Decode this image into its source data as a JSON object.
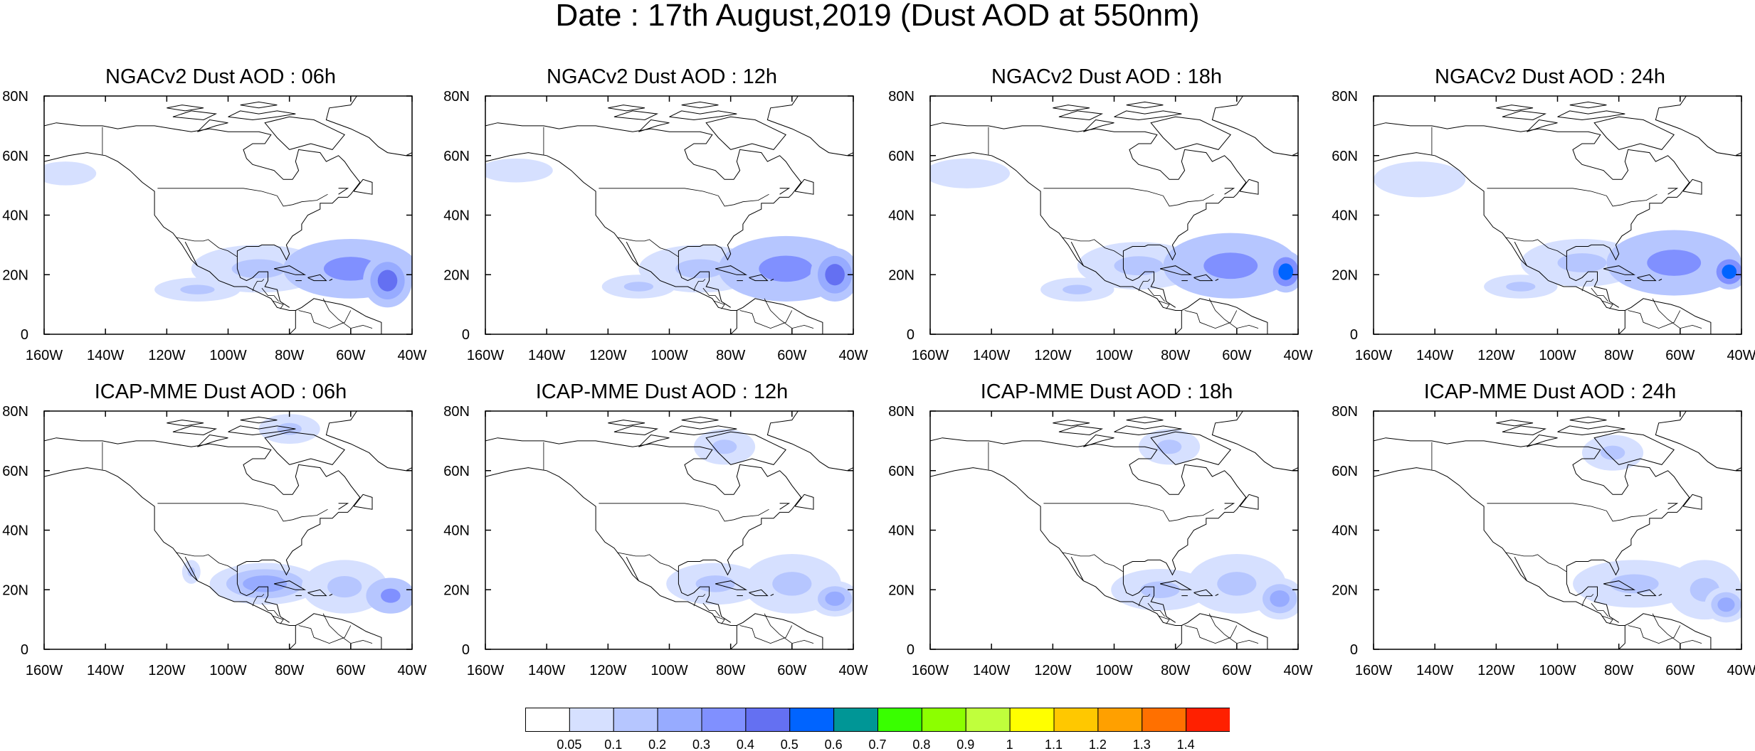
{
  "figure": {
    "title": "Date : 17th August,2019 (Dust AOD at 550nm)"
  },
  "map": {
    "lon_range": [
      -160,
      -40
    ],
    "lat_range": [
      0,
      80
    ],
    "x_tick_labels": [
      "160W",
      "140W",
      "120W",
      "100W",
      "80W",
      "60W",
      "40W"
    ],
    "y_tick_labels": [
      "80N",
      "60N",
      "40N",
      "20N",
      "0"
    ]
  },
  "panels": [
    {
      "title": "NGACv2 Dust AOD : 06h",
      "model": "NGACv2",
      "hour": "06h",
      "blobs": [
        {
          "lon": -153,
          "lat": 54,
          "rx": 10,
          "ry": 4,
          "v": 0.07
        },
        {
          "lon": -90,
          "lat": 22,
          "rx": 22,
          "ry": 8,
          "v": 0.15
        },
        {
          "lon": -60,
          "lat": 22,
          "rx": 22,
          "ry": 10,
          "v": 0.3
        },
        {
          "lon": -48,
          "lat": 18,
          "rx": 8,
          "ry": 9,
          "v": 0.45
        },
        {
          "lon": -110,
          "lat": 15,
          "rx": 14,
          "ry": 4,
          "v": 0.1
        }
      ]
    },
    {
      "title": "NGACv2 Dust AOD : 12h",
      "model": "NGACv2",
      "hour": "12h",
      "blobs": [
        {
          "lon": -150,
          "lat": 55,
          "rx": 12,
          "ry": 4,
          "v": 0.07
        },
        {
          "lon": -90,
          "lat": 22,
          "rx": 20,
          "ry": 8,
          "v": 0.15
        },
        {
          "lon": -62,
          "lat": 22,
          "rx": 22,
          "ry": 11,
          "v": 0.3
        },
        {
          "lon": -46,
          "lat": 20,
          "rx": 8,
          "ry": 9,
          "v": 0.45
        },
        {
          "lon": -110,
          "lat": 16,
          "rx": 12,
          "ry": 4,
          "v": 0.1
        }
      ]
    },
    {
      "title": "NGACv2 Dust AOD : 18h",
      "model": "NGACv2",
      "hour": "18h",
      "blobs": [
        {
          "lon": -148,
          "lat": 54,
          "rx": 14,
          "ry": 5,
          "v": 0.07
        },
        {
          "lon": -92,
          "lat": 23,
          "rx": 20,
          "ry": 8,
          "v": 0.15
        },
        {
          "lon": -62,
          "lat": 23,
          "rx": 22,
          "ry": 11,
          "v": 0.3
        },
        {
          "lon": -44,
          "lat": 21,
          "rx": 6,
          "ry": 7,
          "v": 0.5
        },
        {
          "lon": -112,
          "lat": 15,
          "rx": 12,
          "ry": 4,
          "v": 0.1
        }
      ]
    },
    {
      "title": "NGACv2 Dust AOD : 24h",
      "model": "NGACv2",
      "hour": "24h",
      "blobs": [
        {
          "lon": -145,
          "lat": 52,
          "rx": 15,
          "ry": 6,
          "v": 0.07
        },
        {
          "lon": -92,
          "lat": 24,
          "rx": 20,
          "ry": 8,
          "v": 0.15
        },
        {
          "lon": -62,
          "lat": 24,
          "rx": 22,
          "ry": 11,
          "v": 0.3
        },
        {
          "lon": -44,
          "lat": 21,
          "rx": 6,
          "ry": 6,
          "v": 0.55
        },
        {
          "lon": -112,
          "lat": 16,
          "rx": 12,
          "ry": 4,
          "v": 0.1
        }
      ]
    },
    {
      "title": "ICAP-MME Dust AOD : 06h",
      "model": "ICAP-MME",
      "hour": "06h",
      "blobs": [
        {
          "lon": -80,
          "lat": 74,
          "rx": 10,
          "ry": 5,
          "v": 0.1
        },
        {
          "lon": -88,
          "lat": 22,
          "rx": 18,
          "ry": 7,
          "v": 0.2
        },
        {
          "lon": -62,
          "lat": 21,
          "rx": 14,
          "ry": 9,
          "v": 0.15
        },
        {
          "lon": -47,
          "lat": 18,
          "rx": 8,
          "ry": 6,
          "v": 0.3
        },
        {
          "lon": -112,
          "lat": 26,
          "rx": 3,
          "ry": 4,
          "v": 0.1
        }
      ]
    },
    {
      "title": "ICAP-MME Dust AOD : 12h",
      "model": "ICAP-MME",
      "hour": "12h",
      "blobs": [
        {
          "lon": -82,
          "lat": 68,
          "rx": 10,
          "ry": 6,
          "v": 0.1
        },
        {
          "lon": -85,
          "lat": 22,
          "rx": 16,
          "ry": 7,
          "v": 0.15
        },
        {
          "lon": -60,
          "lat": 22,
          "rx": 16,
          "ry": 10,
          "v": 0.1
        },
        {
          "lon": -46,
          "lat": 17,
          "rx": 8,
          "ry": 6,
          "v": 0.25
        }
      ]
    },
    {
      "title": "ICAP-MME Dust AOD : 18h",
      "model": "ICAP-MME",
      "hour": "18h",
      "blobs": [
        {
          "lon": -82,
          "lat": 68,
          "rx": 10,
          "ry": 6,
          "v": 0.1
        },
        {
          "lon": -85,
          "lat": 20,
          "rx": 16,
          "ry": 7,
          "v": 0.1
        },
        {
          "lon": -60,
          "lat": 22,
          "rx": 16,
          "ry": 10,
          "v": 0.1
        },
        {
          "lon": -46,
          "lat": 17,
          "rx": 8,
          "ry": 7,
          "v": 0.2
        }
      ]
    },
    {
      "title": "ICAP-MME Dust AOD : 24h",
      "model": "ICAP-MME",
      "hour": "24h",
      "blobs": [
        {
          "lon": -82,
          "lat": 66,
          "rx": 10,
          "ry": 6,
          "v": 0.1
        },
        {
          "lon": -75,
          "lat": 22,
          "rx": 20,
          "ry": 8,
          "v": 0.1
        },
        {
          "lon": -52,
          "lat": 20,
          "rx": 12,
          "ry": 10,
          "v": 0.1
        },
        {
          "lon": -45,
          "lat": 15,
          "rx": 7,
          "ry": 6,
          "v": 0.25
        }
      ]
    }
  ],
  "colorbar": {
    "levels": [
      "0.05",
      "0.1",
      "0.2",
      "0.3",
      "0.4",
      "0.5",
      "0.6",
      "0.7",
      "0.8",
      "0.9",
      "1",
      "1.1",
      "1.2",
      "1.3",
      "1.4"
    ],
    "bounds": [
      0,
      0.05,
      0.1,
      0.2,
      0.3,
      0.4,
      0.5,
      0.6,
      0.7,
      0.8,
      0.9,
      1,
      1.1,
      1.2,
      1.3,
      1.4,
      99
    ],
    "colors": [
      "#ffffff",
      "#d6e0ff",
      "#b6c6ff",
      "#97abff",
      "#8090ff",
      "#6470f2",
      "#0064ff",
      "#009696",
      "#39ff00",
      "#8cff00",
      "#c0ff3c",
      "#ffff00",
      "#ffc800",
      "#ffa000",
      "#ff7000",
      "#ff2000"
    ]
  }
}
